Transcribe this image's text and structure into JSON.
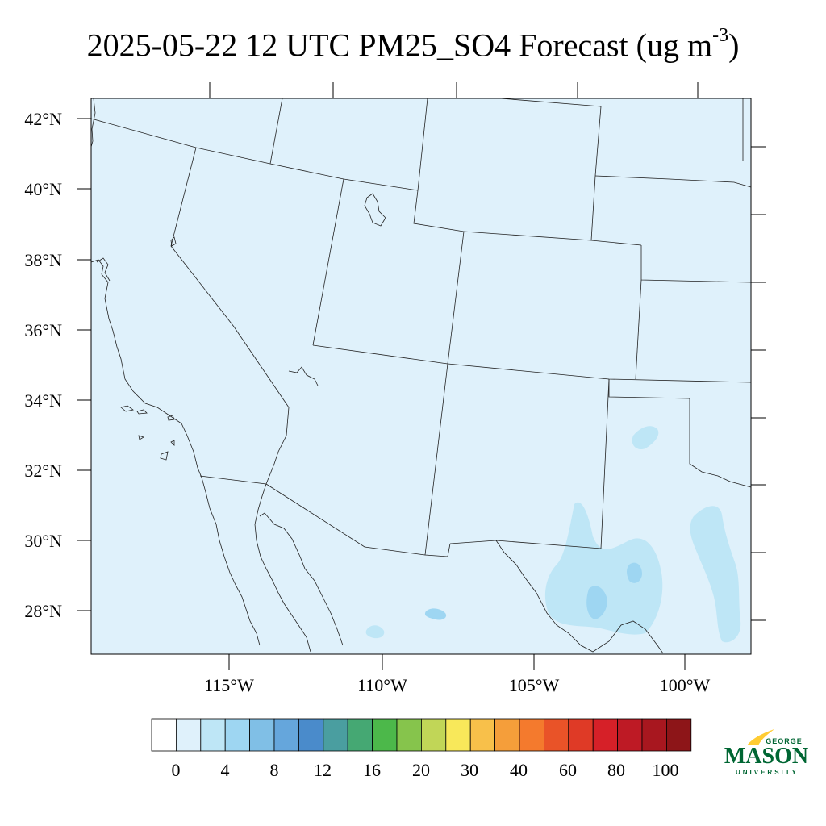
{
  "title": {
    "text": "2025-05-22 12 UTC PM25_SO4 Forecast (ug m",
    "exponent": "-3",
    "suffix": ")"
  },
  "map": {
    "background_color": "#dff1fb",
    "lat_labels": [
      "42°N",
      "40°N",
      "38°N",
      "36°N",
      "34°N",
      "32°N",
      "30°N",
      "28°N"
    ],
    "lon_labels": [
      "115°W",
      "110°W",
      "105°W",
      "100°W"
    ]
  },
  "colorbar": {
    "colors": [
      "#ffffff",
      "#dff1fb",
      "#bee6f6",
      "#9ed6f2",
      "#80bfe6",
      "#65a6dc",
      "#4a8bcb",
      "#4a9ea0",
      "#45a873",
      "#4cb84a",
      "#86c44c",
      "#c1d657",
      "#f8e85a",
      "#f8c04a",
      "#f59e3a",
      "#f47a2d",
      "#e95328",
      "#df3a26",
      "#d62028",
      "#be1a25",
      "#a8171f",
      "#8d1518"
    ],
    "labels": [
      "0",
      "4",
      "8",
      "12",
      "16",
      "20",
      "30",
      "40",
      "60",
      "80",
      "100"
    ]
  },
  "logo": {
    "line1": "GEORGE",
    "line2": "MASON",
    "line3": "UNIVERSITY",
    "color": "#006633",
    "accent": "#ffcc33"
  }
}
